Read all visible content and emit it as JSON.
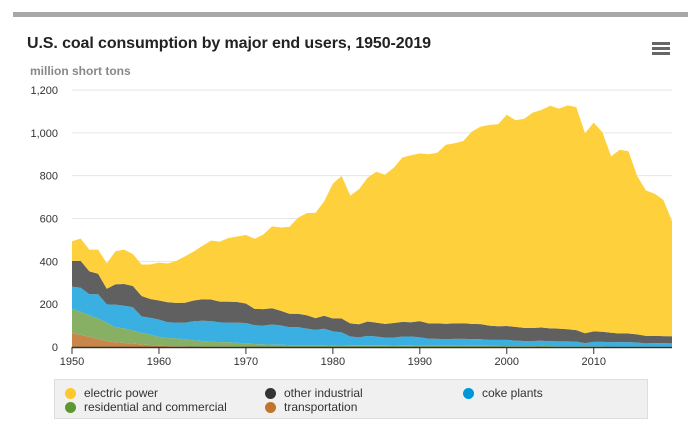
{
  "header": {
    "title": "U.S. coal consumption by major end users, 1950-2019",
    "menu_icon": "hamburger-menu-icon"
  },
  "chart_data": {
    "type": "area",
    "stacked": true,
    "title": "U.S. coal consumption by major end users, 1950-2019",
    "ylabel": "million short tons",
    "xlabel": "",
    "ylim": [
      0,
      1200
    ],
    "xlim": [
      1950,
      2019
    ],
    "yticks": [
      0,
      200,
      400,
      600,
      800,
      1000,
      1200
    ],
    "ytick_labels": [
      "0",
      "200",
      "400",
      "600",
      "800",
      "1,000",
      "1,200"
    ],
    "xticks": [
      1950,
      1960,
      1970,
      1980,
      1990,
      2000,
      2010
    ],
    "xtick_labels": [
      "1950",
      "1960",
      "1970",
      "1980",
      "1990",
      "2000",
      "2010"
    ],
    "grid": true,
    "legend_position": "bottom",
    "x": [
      1950,
      1951,
      1952,
      1953,
      1954,
      1955,
      1956,
      1957,
      1958,
      1959,
      1960,
      1961,
      1962,
      1963,
      1964,
      1965,
      1966,
      1967,
      1968,
      1969,
      1970,
      1971,
      1972,
      1973,
      1974,
      1975,
      1976,
      1977,
      1978,
      1979,
      1980,
      1981,
      1982,
      1983,
      1984,
      1985,
      1986,
      1987,
      1988,
      1989,
      1990,
      1991,
      1992,
      1993,
      1994,
      1995,
      1996,
      1997,
      1998,
      1999,
      2000,
      2001,
      2002,
      2003,
      2004,
      2005,
      2006,
      2007,
      2008,
      2009,
      2010,
      2011,
      2012,
      2013,
      2014,
      2015,
      2016,
      2017,
      2018,
      2019
    ],
    "series": [
      {
        "name": "transportation",
        "color": "#c8864a",
        "values": [
          63,
          57,
          47,
          38,
          27,
          22,
          19,
          16,
          12,
          9,
          6,
          4,
          3,
          3,
          2,
          2,
          1,
          1,
          1,
          1,
          0,
          0,
          0,
          0,
          0,
          0,
          0,
          0,
          0,
          0,
          0,
          0,
          0,
          0,
          0,
          0,
          0,
          0,
          0,
          0,
          0,
          0,
          0,
          0,
          0,
          0,
          0,
          0,
          0,
          0,
          0,
          0,
          0,
          0,
          0,
          0,
          0,
          0,
          0,
          0,
          0,
          0,
          0,
          0,
          0,
          0,
          0,
          0,
          0,
          0
        ]
      },
      {
        "name": "residential and commercial",
        "color": "#88b065",
        "values": [
          115,
          107,
          101,
          95,
          87,
          69,
          68,
          61,
          54,
          49,
          41,
          38,
          37,
          33,
          29,
          26,
          24,
          22,
          22,
          19,
          16,
          14,
          12,
          11,
          11,
          9,
          9,
          9,
          9,
          8,
          6,
          7,
          8,
          8,
          8,
          8,
          8,
          7,
          8,
          8,
          6,
          6,
          6,
          6,
          6,
          5,
          6,
          6,
          5,
          5,
          4,
          4,
          4,
          4,
          5,
          4,
          3,
          3,
          3,
          3,
          3,
          3,
          2,
          2,
          2,
          2,
          1,
          1,
          1,
          1
        ]
      },
      {
        "name": "coke plants",
        "color": "#3ab0e2",
        "values": [
          104,
          113,
          98,
          113,
          85,
          107,
          106,
          109,
          77,
          79,
          81,
          74,
          74,
          77,
          89,
          95,
          96,
          92,
          91,
          93,
          96,
          88,
          88,
          94,
          90,
          83,
          84,
          77,
          71,
          77,
          67,
          61,
          41,
          37,
          44,
          41,
          36,
          37,
          41,
          41,
          39,
          33,
          32,
          31,
          32,
          33,
          31,
          30,
          28,
          28,
          29,
          26,
          24,
          24,
          24,
          23,
          23,
          23,
          22,
          15,
          21,
          21,
          21,
          21,
          21,
          19,
          16,
          17,
          17,
          16
        ]
      },
      {
        "name": "other industrial",
        "color": "#606060",
        "values": [
          120,
          125,
          107,
          96,
          73,
          95,
          101,
          99,
          95,
          87,
          89,
          93,
          92,
          94,
          97,
          100,
          101,
          97,
          98,
          97,
          91,
          76,
          77,
          76,
          68,
          63,
          62,
          62,
          55,
          61,
          60,
          65,
          61,
          61,
          67,
          65,
          64,
          68,
          68,
          67,
          76,
          71,
          72,
          72,
          72,
          73,
          71,
          71,
          67,
          64,
          65,
          64,
          61,
          61,
          62,
          60,
          60,
          57,
          54,
          46,
          49,
          47,
          44,
          40,
          40,
          38,
          35,
          34,
          33,
          33
        ]
      },
      {
        "name": "electric power",
        "color": "#fdd03c",
        "values": [
          92,
          104,
          101,
          113,
          119,
          154,
          161,
          149,
          147,
          161,
          177,
          181,
          196,
          216,
          229,
          249,
          275,
          280,
          297,
          306,
          320,
          327,
          348,
          382,
          389,
          406,
          449,
          477,
          491,
          535,
          630,
          666,
          597,
          631,
          672,
          704,
          696,
          725,
          768,
          779,
          783,
          790,
          797,
          835,
          841,
          851,
          898,
          922,
          937,
          943,
          986,
          965,
          977,
          1006,
          1016,
          1039,
          1027,
          1045,
          1041,
          934,
          975,
          932,
          823,
          858,
          851,
          739,
          679,
          664,
          637,
          538
        ]
      }
    ]
  },
  "legend": {
    "items": [
      {
        "label": "electric power",
        "color": "#fdc82f",
        "icon": "circle-marker-icon"
      },
      {
        "label": "other industrial",
        "color": "#333333",
        "icon": "circle-marker-icon"
      },
      {
        "label": "coke plants",
        "color": "#0096d7",
        "icon": "circle-marker-icon"
      },
      {
        "label": "residential and commercial",
        "color": "#5d9732",
        "icon": "circle-marker-icon"
      },
      {
        "label": "transportation",
        "color": "#bf7530",
        "icon": "circle-marker-icon"
      }
    ]
  }
}
